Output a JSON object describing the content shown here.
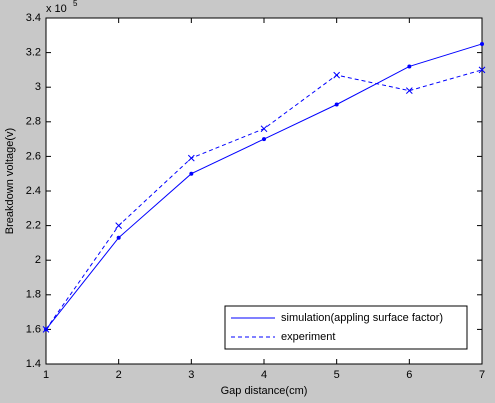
{
  "chart_data": {
    "type": "line",
    "x_label": "Gap distance(cm)",
    "y_label": "Breakdown voltage(v)",
    "y_multiplier": {
      "base": "x 10",
      "exponent": 5
    },
    "x": [
      1,
      2,
      3,
      4,
      5,
      6,
      7
    ],
    "series": [
      {
        "name": "simulation(appling surface factor)",
        "color": "#0000ff",
        "line_style": "solid",
        "marker": "dot",
        "values": [
          1.6,
          2.13,
          2.5,
          2.7,
          2.9,
          3.12,
          3.25
        ]
      },
      {
        "name": "experiment",
        "color": "#0000ff",
        "line_style": "dashed",
        "marker": "x",
        "values": [
          1.6,
          2.2,
          2.59,
          2.76,
          3.07,
          2.98,
          3.1
        ]
      }
    ],
    "xlim": [
      1,
      7
    ],
    "xticks": [
      1,
      2,
      3,
      4,
      5,
      6,
      7
    ],
    "ylim": [
      1.4,
      3.4
    ],
    "yticks": [
      1.4,
      1.6,
      1.8,
      2,
      2.2,
      2.4,
      2.6,
      2.8,
      3,
      3.2,
      3.4
    ],
    "grid": false,
    "legend_position": "lower-right"
  }
}
